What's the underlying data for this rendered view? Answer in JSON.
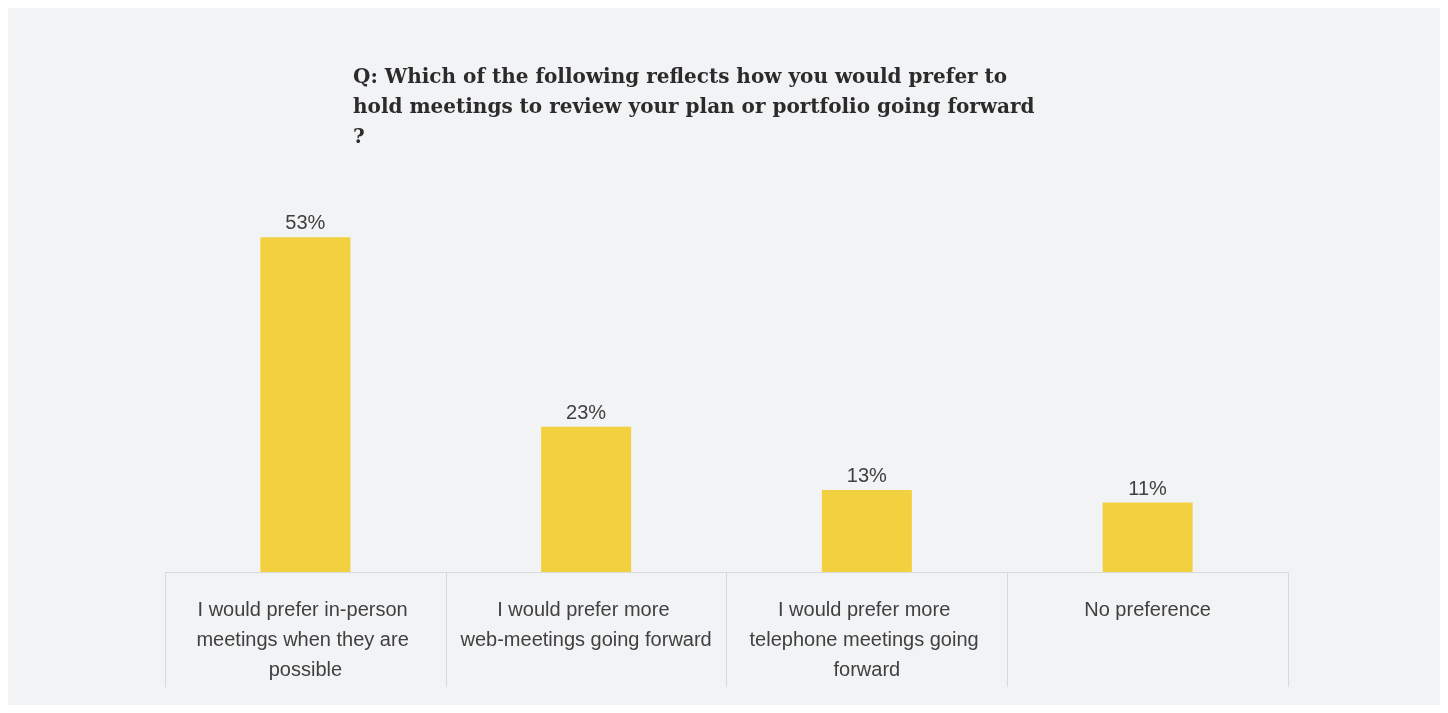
{
  "chart_data": {
    "type": "bar",
    "title": "Q: Which of the following reflects how you would prefer to hold meetings to review your plan or portfolio going forward?",
    "categories": [
      "I would prefer in-person meetings when they are possible",
      "I would prefer more web-meetings going forward",
      "I would prefer more telephone meetings going forward",
      "No preference"
    ],
    "values": [
      53,
      23,
      13,
      11
    ],
    "value_labels": [
      "53%",
      "23%",
      "13%",
      "11%"
    ],
    "color": "#f2d03f"
  }
}
